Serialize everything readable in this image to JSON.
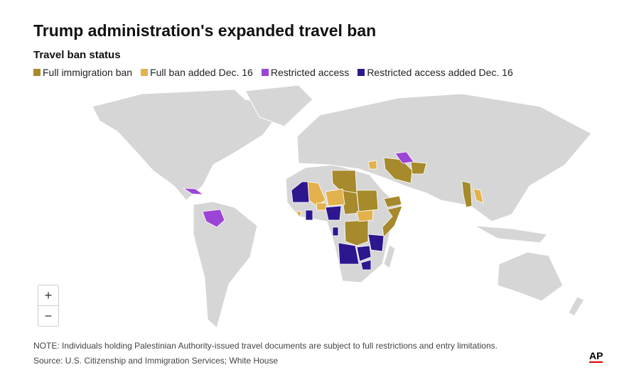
{
  "header": {
    "title": "Trump administration's expanded travel ban",
    "subtitle": "Travel ban status"
  },
  "legend": [
    {
      "label": "Full immigration ban",
      "color": "#a68a2b"
    },
    {
      "label": "Full ban added Dec. 16",
      "color": "#e3b24c"
    },
    {
      "label": "Restricted access",
      "color": "#9b45d6"
    },
    {
      "label": "Restricted access added Dec. 16",
      "color": "#2e168f"
    }
  ],
  "zoom": {
    "in": "+",
    "out": "−"
  },
  "footer": {
    "note": "NOTE: Individuals holding Palestinian Authority-issued travel documents are subject to full restrictions and entry limitations.",
    "source": "Source: U.S. Citizenship and Immigration Services; White House",
    "logo": "AP"
  }
}
